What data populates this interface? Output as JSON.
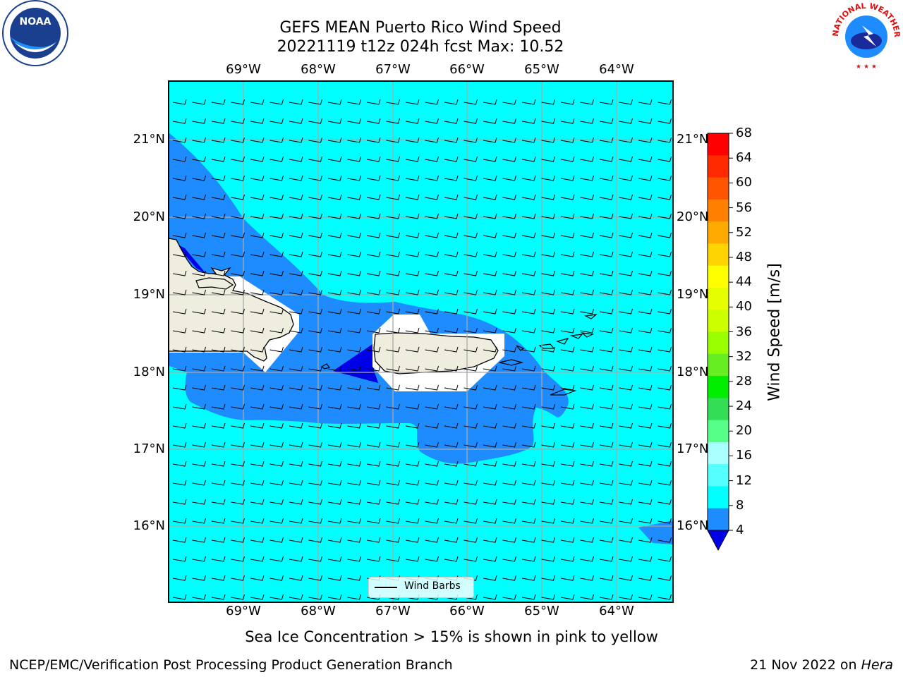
{
  "title": {
    "line1": "GEFS MEAN Puerto Rico Wind Speed",
    "line2": "20221119 t12z 024h fcst   Max: 10.52"
  },
  "map": {
    "lon_labels": [
      "69°W",
      "68°W",
      "67°W",
      "66°W",
      "65°W",
      "64°W"
    ],
    "lat_labels": [
      "21°N",
      "20°N",
      "19°N",
      "18°N",
      "17°N",
      "16°N"
    ],
    "legend_label": "Wind Barbs",
    "ocean_color": "#00ffff",
    "band_color": "#1e8cff",
    "calm_color": "#0000e6",
    "land_color": "#efedde"
  },
  "colorbar": {
    "label": "Wind Speed [m/s]",
    "ticks": [
      "68",
      "64",
      "60",
      "56",
      "52",
      "48",
      "44",
      "40",
      "36",
      "32",
      "28",
      "24",
      "20",
      "16",
      "12",
      "8",
      "4"
    ],
    "colors": [
      "#ff0000",
      "#ff2a00",
      "#ff5500",
      "#ff8000",
      "#ffaa00",
      "#ffd400",
      "#ffff00",
      "#e6ff00",
      "#ccff00",
      "#99ff00",
      "#66ee22",
      "#00ee00",
      "#33dd55",
      "#55ff88",
      "#aaffff",
      "#55ffff",
      "#00ffff",
      "#1e8cff"
    ],
    "extend_color": "#0000e6"
  },
  "caption": "Sea Ice Concentration > 15% is shown in pink to yellow",
  "footer": {
    "left": "NCEP/EMC/Verification Post Processing Product Generation Branch",
    "date": "21 Nov 2022 on",
    "machine": "Hera"
  },
  "logos": {
    "noaa": "NOAA",
    "nws": "NATIONAL WEATHER SERVICE"
  }
}
